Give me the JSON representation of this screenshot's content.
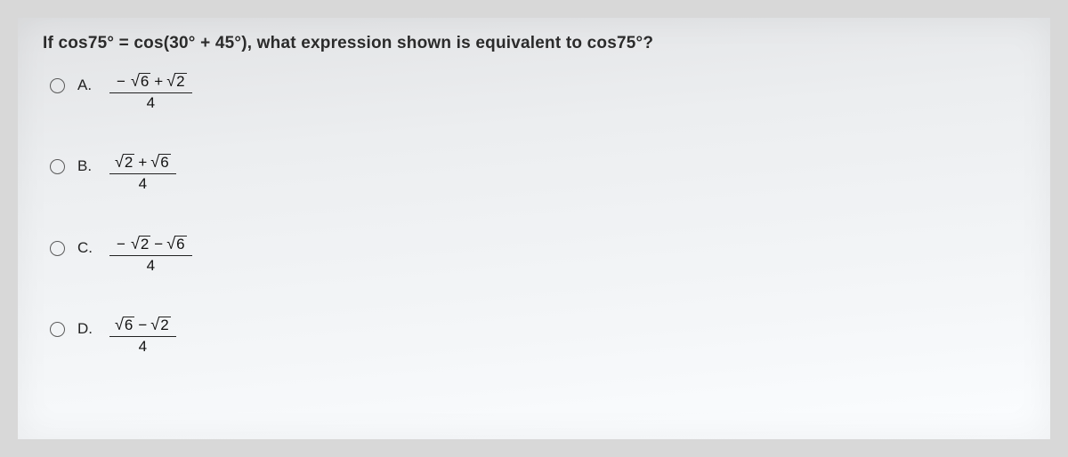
{
  "question": "If cos75° = cos(30° + 45°), what expression shown is equivalent to cos75°?",
  "options": {
    "A": {
      "letter": "A.",
      "leading_minus": "−",
      "term1": "6",
      "operator": "+",
      "term2": "2",
      "denominator": "4"
    },
    "B": {
      "letter": "B.",
      "leading_minus": "",
      "term1": "2",
      "operator": "+",
      "term2": "6",
      "denominator": "4"
    },
    "C": {
      "letter": "C.",
      "leading_minus": "−",
      "term1": "2",
      "operator": "−",
      "term2": "6",
      "denominator": "4"
    },
    "D": {
      "letter": "D.",
      "leading_minus": "",
      "term1": "6",
      "operator": "−",
      "term2": "2",
      "denominator": "4"
    }
  },
  "colors": {
    "text": "#2b2b2b",
    "paper_light": "#fbfdff",
    "paper_dark": "#e2e3e5"
  }
}
